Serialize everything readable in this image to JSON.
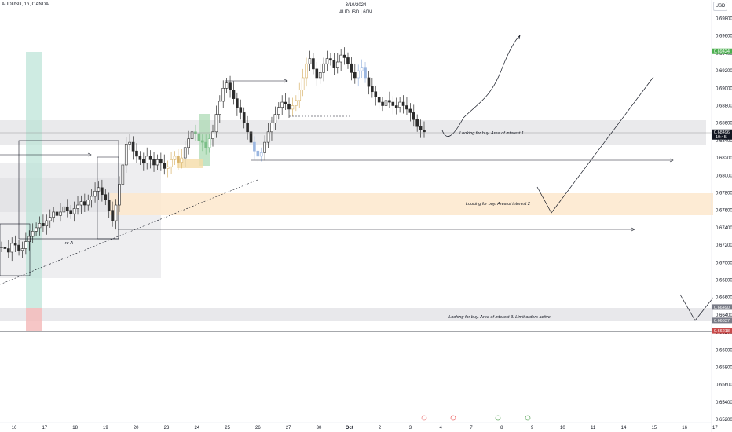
{
  "header": {
    "symbol": "AUDUSD, 1h, OANDA",
    "date": "3/10/2024",
    "subtitle": "AUDUSD | 60M",
    "currency": "USD"
  },
  "colors": {
    "up": "#2b2b2b",
    "down": "#2b2b2b",
    "blue_highlight": "#9bb6e0",
    "yellow_highlight": "#f5dca8",
    "green_highlight": "#a8d8b0",
    "green_zone": "#b9e2d6",
    "red_zone": "#f4b8b8",
    "grey_zone": "#d9d9dd",
    "orange_zone": "#fde7cc",
    "price_tag": "#131722",
    "green_tag": "#4caf50",
    "grey_tag": "#787b86",
    "red_tag": "#c94a4a"
  },
  "chart_data": {
    "type": "candlestick",
    "ylim": [
      0.6512,
      0.6994
    ],
    "y_ticks": [
      "0.69800",
      "0.69600",
      "0.69400",
      "0.69200",
      "0.69000",
      "0.68800",
      "0.68600",
      "0.68400",
      "0.68200",
      "0.68000",
      "0.67800",
      "0.67600",
      "0.67400",
      "0.67200",
      "0.67000",
      "0.66800",
      "0.66600",
      "0.66400",
      "0.66200",
      "0.66000",
      "0.65800",
      "0.65600",
      "0.65400",
      "0.65200"
    ],
    "x_ticks": [
      "16",
      "17",
      "18",
      "19",
      "20",
      "23",
      "24",
      "25",
      "26",
      "27",
      "30",
      "Oct",
      "2",
      "3",
      "4",
      "7",
      "8",
      "9",
      "10",
      "11",
      "14",
      "15",
      "16",
      "17"
    ],
    "price_tags": [
      {
        "label": "0.69424",
        "value": 0.69424,
        "kind": "green"
      },
      {
        "label": "0.68496",
        "value": 0.68496,
        "kind": "current",
        "sub": "10:45"
      },
      {
        "label": "0.66490",
        "value": 0.6649,
        "kind": "grey"
      },
      {
        "label": "0.66337",
        "value": 0.66337,
        "kind": "grey"
      },
      {
        "label": "0.66218",
        "value": 0.66218,
        "kind": "red"
      }
    ],
    "price_path": [
      0.6718,
      0.6716,
      0.6712,
      0.6722,
      0.672,
      0.6714,
      0.6716,
      0.6724,
      0.673,
      0.6736,
      0.674,
      0.6745,
      0.6742,
      0.6748,
      0.6752,
      0.6758,
      0.6754,
      0.6758,
      0.6764,
      0.676,
      0.6756,
      0.6762,
      0.6766,
      0.677,
      0.6766,
      0.6772,
      0.6776,
      0.6782,
      0.6786,
      0.6778,
      0.6772,
      0.676,
      0.6748,
      0.6766,
      0.679,
      0.6812,
      0.6836,
      0.6838,
      0.6828,
      0.6822,
      0.6818,
      0.6814,
      0.6822,
      0.6818,
      0.6812,
      0.6818,
      0.6814,
      0.6808,
      0.681,
      0.6818,
      0.6822,
      0.6815,
      0.682,
      0.6832,
      0.6842,
      0.685,
      0.6848,
      0.684,
      0.6838,
      0.6832,
      0.6842,
      0.685,
      0.687,
      0.6885,
      0.69,
      0.6906,
      0.6898,
      0.6888,
      0.6878,
      0.6872,
      0.686,
      0.685,
      0.6838,
      0.6828,
      0.6822,
      0.6826,
      0.6838,
      0.685,
      0.686,
      0.687,
      0.6878,
      0.6884,
      0.6882,
      0.6876,
      0.688,
      0.6886,
      0.6898,
      0.6912,
      0.6928,
      0.6934,
      0.6922,
      0.6912,
      0.6918,
      0.6928,
      0.6934,
      0.6932,
      0.6924,
      0.693,
      0.6938,
      0.6935,
      0.6928,
      0.6918,
      0.6912,
      0.692,
      0.6924,
      0.6912,
      0.6902,
      0.6896,
      0.689,
      0.6884,
      0.688,
      0.6886,
      0.6884,
      0.688,
      0.6878,
      0.6884,
      0.688,
      0.6876,
      0.6872,
      0.6864,
      0.6856,
      0.6852,
      0.685
    ]
  },
  "annotations": {
    "aoi1": "Looking for buy. Area of interest 1",
    "aoi2": "Looking for buy. Area of interest 2",
    "aoi3": "Looking for buy. Area of interest 3. Limit orders active",
    "reA": "re-A"
  }
}
